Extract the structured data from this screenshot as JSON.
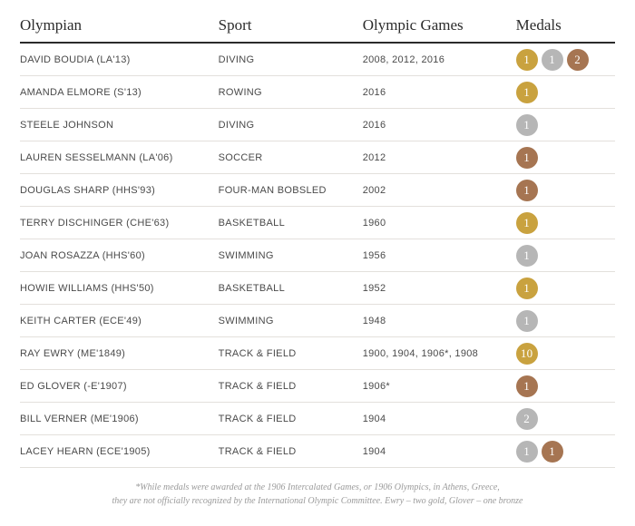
{
  "colors": {
    "gold": "#c9a23f",
    "silver": "#b6b6b6",
    "bronze": "#a67552",
    "header_text": "#2b2b2b",
    "row_text": "#4a4a4a",
    "border": "#e3e0dc"
  },
  "columns": {
    "olympian": "Olympian",
    "sport": "Sport",
    "games": "Olympic Games",
    "medals": "Medals"
  },
  "rows": [
    {
      "olympian": "DAVID BOUDIA (LA'13)",
      "sport": "DIVING",
      "games": "2008, 2012, 2016",
      "medals": [
        {
          "type": "gold",
          "count": "1"
        },
        {
          "type": "silver",
          "count": "1"
        },
        {
          "type": "bronze",
          "count": "2"
        }
      ]
    },
    {
      "olympian": "AMANDA ELMORE (S'13)",
      "sport": "ROWING",
      "games": "2016",
      "medals": [
        {
          "type": "gold",
          "count": "1"
        }
      ]
    },
    {
      "olympian": "STEELE JOHNSON",
      "sport": "DIVING",
      "games": "2016",
      "medals": [
        {
          "type": "silver",
          "count": "1"
        }
      ]
    },
    {
      "olympian": "LAUREN SESSELMANN (LA'06)",
      "sport": "SOCCER",
      "games": "2012",
      "medals": [
        {
          "type": "bronze",
          "count": "1"
        }
      ]
    },
    {
      "olympian": "DOUGLAS SHARP (HHS'93)",
      "sport": "FOUR-MAN BOBSLED",
      "games": "2002",
      "medals": [
        {
          "type": "bronze",
          "count": "1"
        }
      ]
    },
    {
      "olympian": "TERRY DISCHINGER (CHE'63)",
      "sport": "BASKETBALL",
      "games": "1960",
      "medals": [
        {
          "type": "gold",
          "count": "1"
        }
      ]
    },
    {
      "olympian": "JOAN ROSAZZA (HHS'60)",
      "sport": "SWIMMING",
      "games": "1956",
      "medals": [
        {
          "type": "silver",
          "count": "1"
        }
      ]
    },
    {
      "olympian": "HOWIE WILLIAMS (HHS'50)",
      "sport": "BASKETBALL",
      "games": "1952",
      "medals": [
        {
          "type": "gold",
          "count": "1"
        }
      ]
    },
    {
      "olympian": "KEITH CARTER (ECE'49)",
      "sport": "SWIMMING",
      "games": "1948",
      "medals": [
        {
          "type": "silver",
          "count": "1"
        }
      ]
    },
    {
      "olympian": "RAY EWRY (ME'1849)",
      "sport": "TRACK & FIELD",
      "games": "1900, 1904, 1906*, 1908",
      "medals": [
        {
          "type": "gold",
          "count": "10"
        }
      ]
    },
    {
      "olympian": "ED GLOVER (-E'1907)",
      "sport": "TRACK & FIELD",
      "games": "1906*",
      "medals": [
        {
          "type": "bronze",
          "count": "1"
        }
      ]
    },
    {
      "olympian": "BILL VERNER (ME'1906)",
      "sport": "TRACK & FIELD",
      "games": "1904",
      "medals": [
        {
          "type": "silver",
          "count": "2"
        }
      ]
    },
    {
      "olympian": "LACEY HEARN (ECE'1905)",
      "sport": "TRACK & FIELD",
      "games": "1904",
      "medals": [
        {
          "type": "silver",
          "count": "1"
        },
        {
          "type": "bronze",
          "count": "1"
        }
      ]
    }
  ],
  "footnote": {
    "line1": "*While medals were awarded at the 1906 Intercalated Games, or 1906 Olympics, in Athens, Greece,",
    "line2": "they are not officially recognized by the International Olympic Committee. Ewry – two gold, Glover – one bronze"
  }
}
